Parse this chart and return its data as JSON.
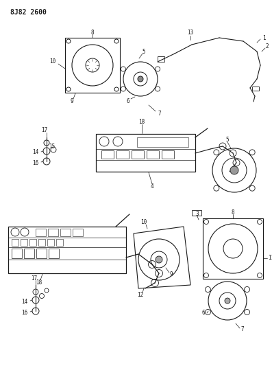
{
  "title": "8J82 2600",
  "bg_color": "#ffffff",
  "line_color": "#1a1a1a",
  "figsize": [
    3.97,
    5.33
  ],
  "dpi": 100
}
